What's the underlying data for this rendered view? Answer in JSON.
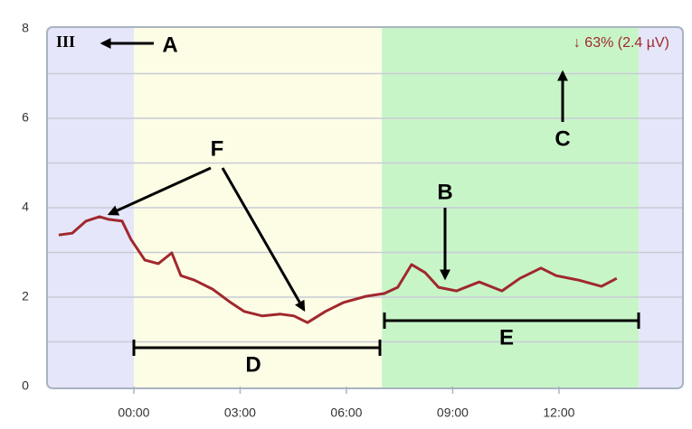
{
  "chart_data": {
    "type": "line",
    "lead": "III",
    "status": "↓ 63% (2.4 µV)",
    "labels": [
      "A",
      "B",
      "C",
      "D",
      "E",
      "F"
    ],
    "regions": [
      {
        "x": [
          -2.45,
          0
        ],
        "color": "#e6e6fa"
      },
      {
        "x": [
          0,
          7.0
        ],
        "color": "#fdfde6"
      },
      {
        "x": [
          7.0,
          14.25
        ],
        "color": "#c8f5c8"
      },
      {
        "x": [
          14.25,
          15.5
        ],
        "color": "#e6e6fa"
      }
    ],
    "series": [
      {
        "color": "#a0282d",
        "x": [
          -2.12,
          -1.74,
          -1.35,
          -0.97,
          -0.71,
          -0.33,
          -0.08,
          0.31,
          0.69,
          1.07,
          1.33,
          1.71,
          2.22,
          2.73,
          3.11,
          3.63,
          4.14,
          4.52,
          4.9,
          5.41,
          5.92,
          6.56,
          7.07,
          7.45,
          7.84,
          8.22,
          8.6,
          9.11,
          9.75,
          10.39,
          10.9,
          11.49,
          11.92,
          12.56,
          13.2,
          13.63
        ],
        "values": [
          3.39,
          3.43,
          3.7,
          3.8,
          3.74,
          3.7,
          3.29,
          2.83,
          2.75,
          2.99,
          2.48,
          2.38,
          2.18,
          1.88,
          1.68,
          1.58,
          1.62,
          1.58,
          1.43,
          1.68,
          1.88,
          2.02,
          2.08,
          2.22,
          2.73,
          2.55,
          2.22,
          2.14,
          2.34,
          2.14,
          2.42,
          2.65,
          2.48,
          2.38,
          2.24,
          2.42
        ]
      }
    ],
    "xlim": [
      -2.45,
      15.5
    ],
    "xticks": [
      {
        "value": 0,
        "label": "00:00"
      },
      {
        "value": 3,
        "label": "03:00"
      },
      {
        "value": 6,
        "label": "06:00"
      },
      {
        "value": 9,
        "label": "09:00"
      },
      {
        "value": 12,
        "label": "12:00"
      }
    ],
    "ylim": [
      0,
      8
    ],
    "yticks": [
      0,
      2,
      4,
      6,
      8
    ],
    "yminor": [
      1,
      3,
      5,
      7
    ],
    "grid": true
  }
}
